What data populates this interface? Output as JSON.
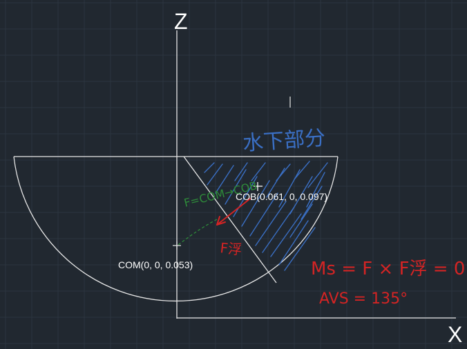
{
  "axes": {
    "z_label": "Z",
    "x_label": "X"
  },
  "points": {
    "com_label": "COM(0, 0, 0.053)",
    "cob_label": "COB(0.061, 0, 0.097)"
  },
  "annotations": {
    "water_part": "水下部分",
    "force_vector": "F=COM→COB",
    "force_short": "F浮",
    "moment_equation": "Ms = F × F浮 = 0",
    "avs": "AVS = 135°"
  },
  "colors": {
    "background": "#212830",
    "grid": "#2c353f",
    "lines": "#e8e8e8",
    "blue_ink": "#3a6fc4",
    "green_ink": "#2e8b3a",
    "red_ink": "#d42424"
  }
}
